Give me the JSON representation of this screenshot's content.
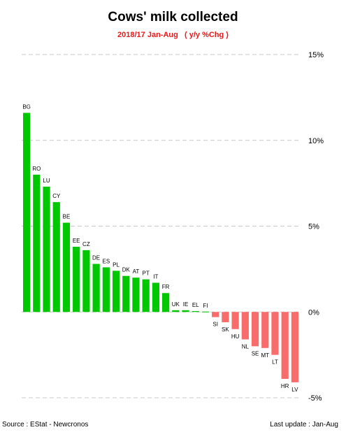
{
  "chart_data": {
    "type": "bar",
    "title": "Cows' milk collected",
    "subtitle": "2018/17 Jan-Aug   ( y/y %Chg )",
    "xlabel": "",
    "ylabel": "",
    "ylim": [
      -5,
      15
    ],
    "y_ticks": [
      15,
      10,
      5,
      0,
      -5
    ],
    "y_tick_labels": [
      "15%",
      "10%",
      "5%",
      "0%",
      "-5%"
    ],
    "y_axis_side": "right",
    "grid": true,
    "positive_color": "#00c800",
    "negative_color": "#f86c6c",
    "categories": [
      "BG",
      "RO",
      "LU",
      "CY",
      "BE",
      "EE",
      "CZ",
      "DE",
      "ES",
      "PL",
      "DK",
      "AT",
      "PT",
      "IT",
      "FR",
      "UK",
      "IE",
      "EL",
      "FI",
      "SI",
      "SK",
      "HU",
      "NL",
      "SE",
      "MT",
      "LT",
      "HR",
      "LV"
    ],
    "values": [
      11.6,
      8.0,
      7.3,
      6.4,
      5.2,
      3.8,
      3.6,
      2.8,
      2.6,
      2.4,
      2.1,
      2.0,
      1.9,
      1.7,
      1.1,
      0.1,
      0.1,
      0.05,
      0.02,
      -0.3,
      -0.6,
      -1.0,
      -1.6,
      -2.0,
      -2.1,
      -2.5,
      -3.9,
      -4.1
    ]
  },
  "footer": {
    "source": "Source : EStat - Newcronos",
    "last_update": "Last update : Jan-Aug"
  }
}
